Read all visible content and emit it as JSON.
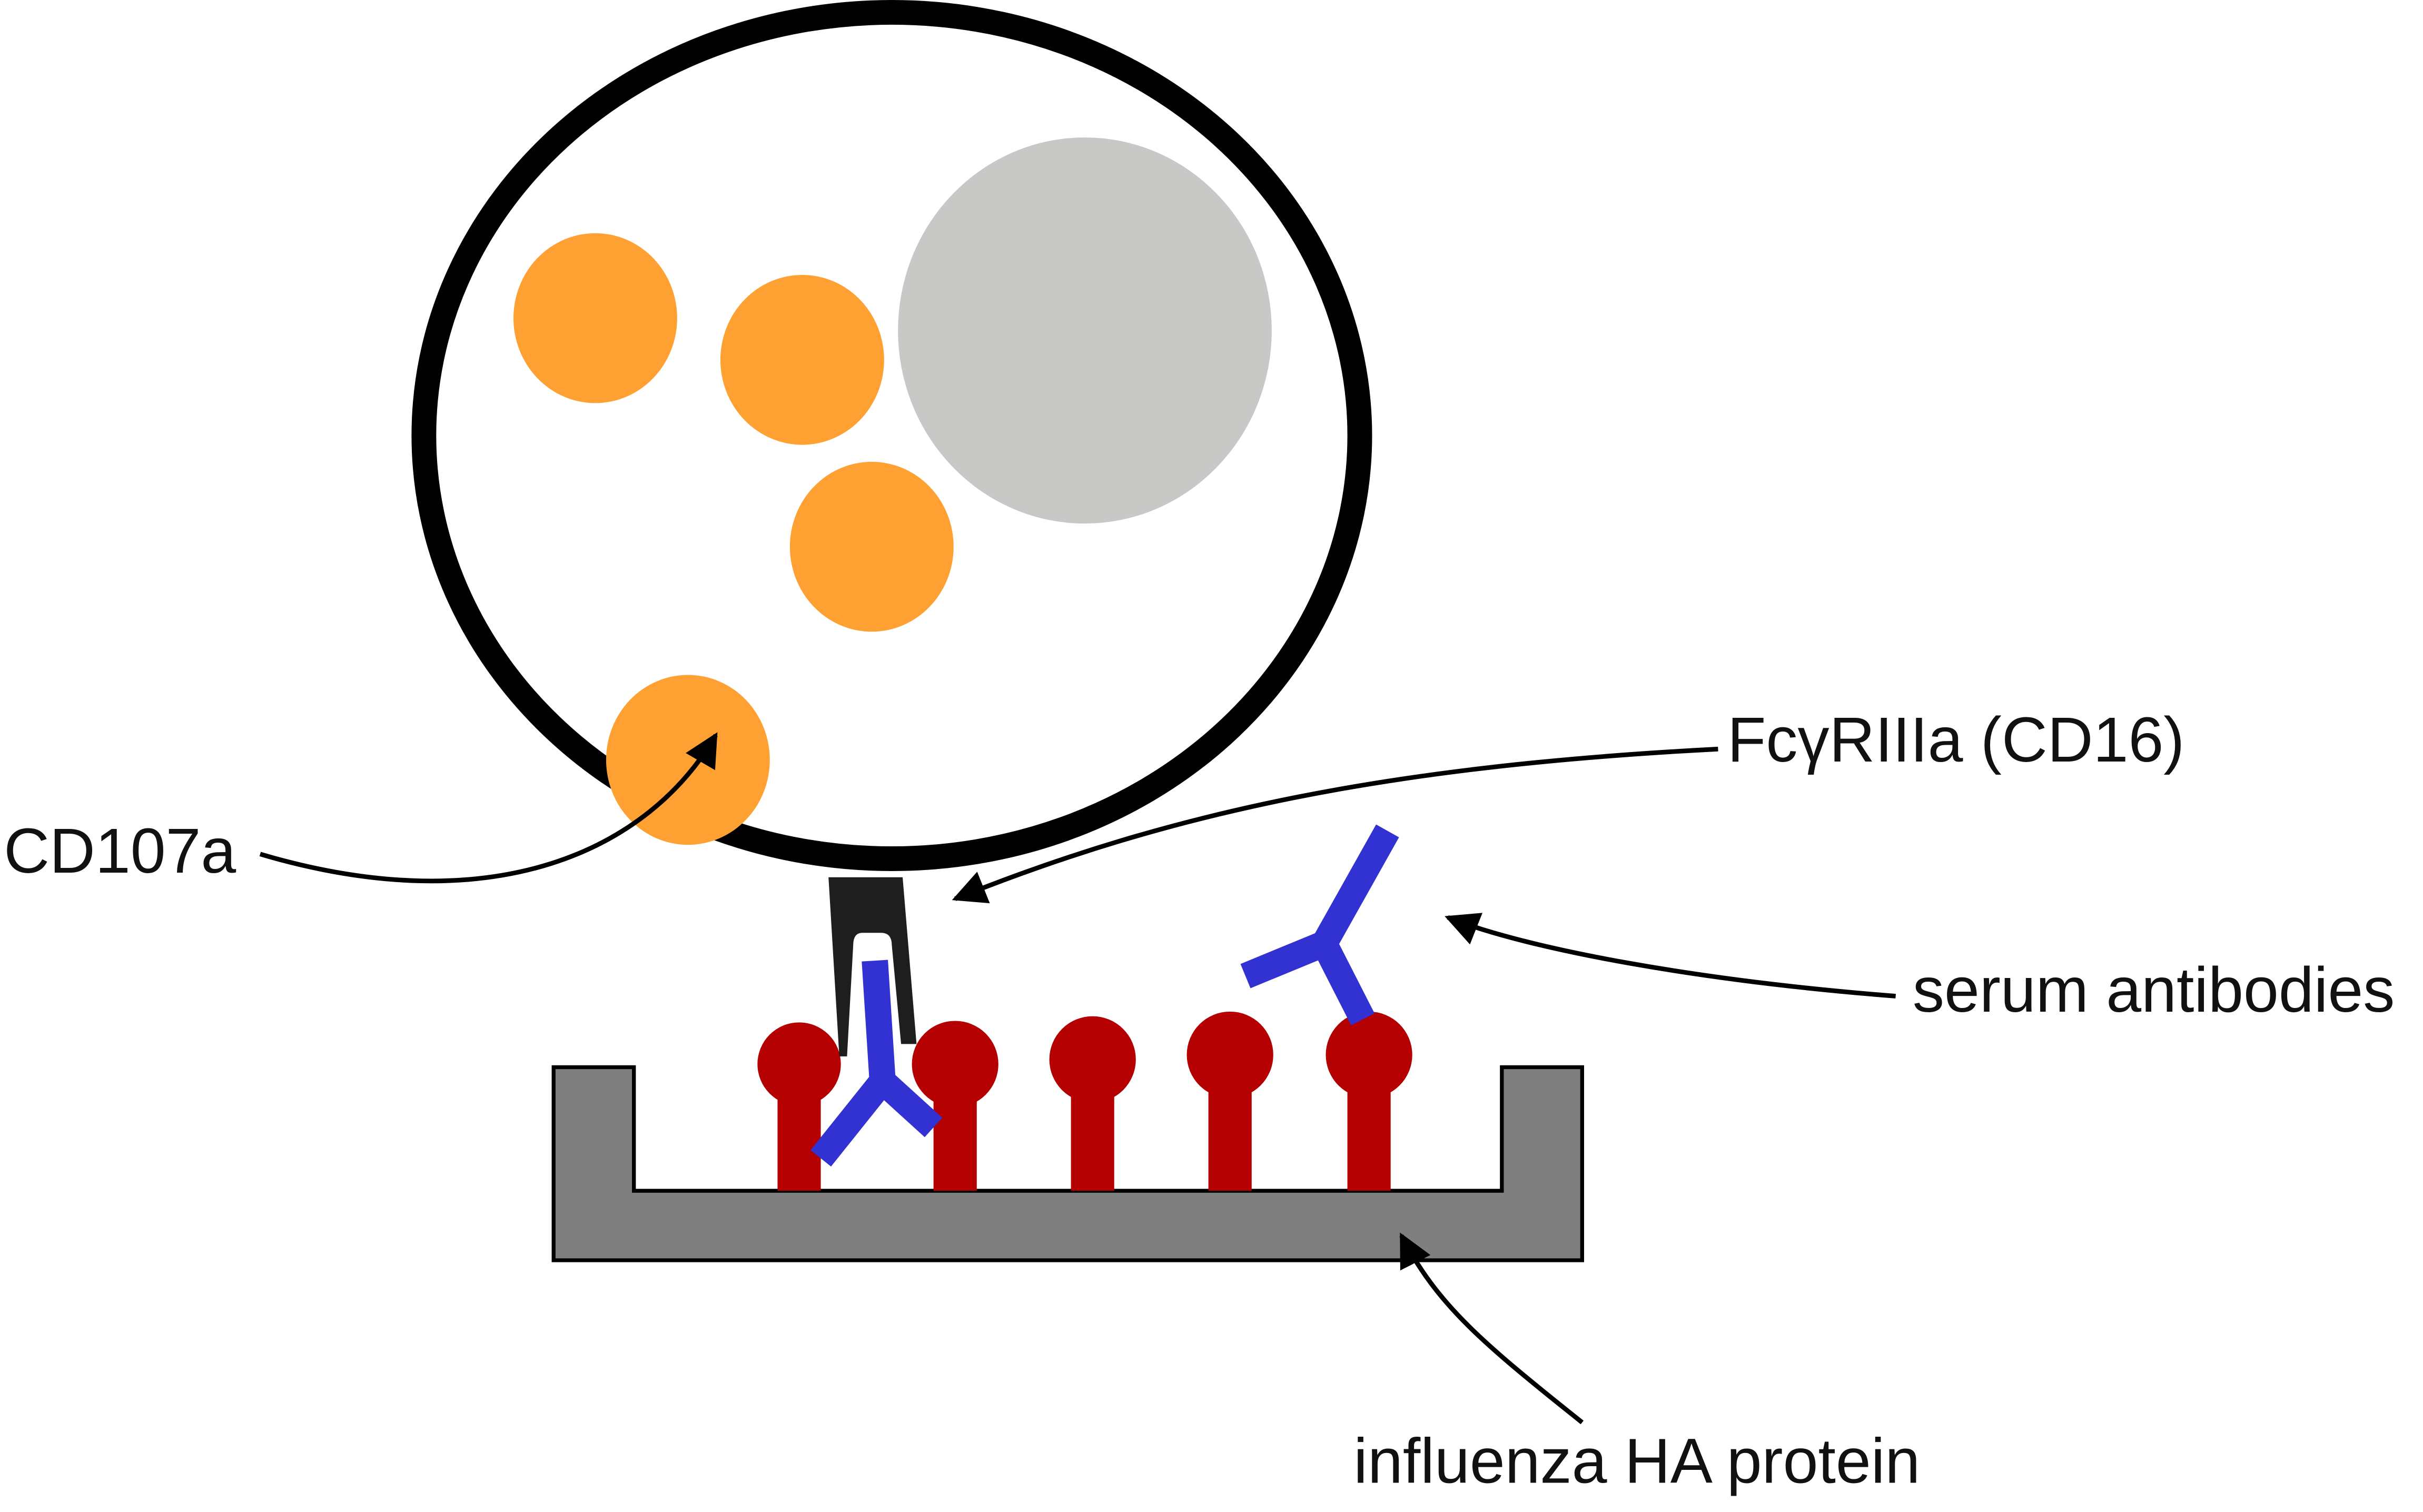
{
  "labels": {
    "cd107a": "CD107a",
    "fc_receptor": "FcγRIIIa (CD16)",
    "serum_antibodies": "serum antibodies",
    "ha_protein": "influenza HA protein"
  },
  "colors": {
    "cell_outline": "#000000",
    "cell_fill": "#ffffff",
    "granule": "#FFA033",
    "nucleus": "#C8C8C7",
    "receptor": "#1E1E1E",
    "antibody": "#3232D2",
    "ha_protein": "#B40000",
    "plate": "#7F7F7F",
    "arrow": "#000000"
  },
  "icons": [
    "nk-cell-icon",
    "granule-icon",
    "nucleus-icon",
    "receptor-icon",
    "antibody-icon",
    "ha-protein-icon",
    "plate-well-icon",
    "arrow-icon"
  ],
  "counts": {
    "granules": 4,
    "ha_proteins": 5,
    "antibodies": 2
  }
}
